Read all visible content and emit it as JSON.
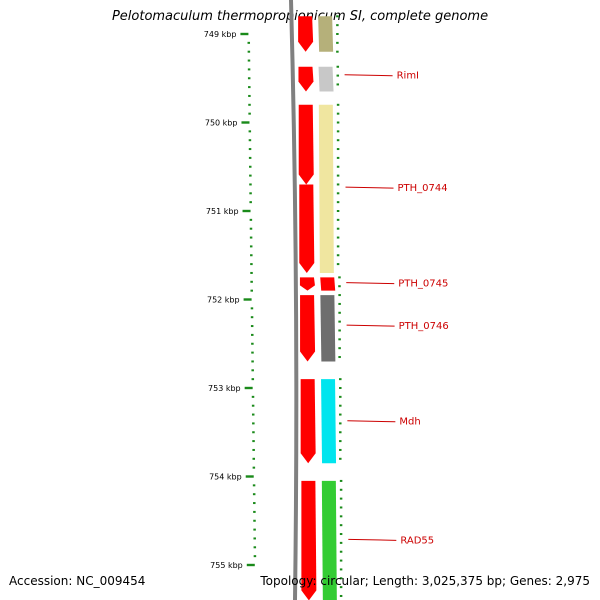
{
  "title": "Pelotomaculum thermopropionicum SI, complete genome",
  "accession": "Accession: NC_009454",
  "topology": "Topology: circular; Length: 3,025,375 bp; Genes: 2,975",
  "colors": {
    "tick": "#1a8a1a",
    "backbone": "#808080",
    "forward": "#ff0000",
    "label": "#cc0000"
  },
  "ticks": [
    {
      "label": "749 kbp"
    },
    {
      "label": "750 kbp"
    },
    {
      "label": "751 kbp"
    },
    {
      "label": "752 kbp"
    },
    {
      "label": "753 kbp"
    },
    {
      "label": "754 kbp"
    },
    {
      "label": "755 kbp"
    }
  ],
  "genes": [
    {
      "name": "",
      "color": "#b5b07a"
    },
    {
      "name": "RimI",
      "color": "#c8c8c8"
    },
    {
      "name": "PTH_0744",
      "color": "#f0e6a0"
    },
    {
      "name": "PTH_0745",
      "color": "#ff0000"
    },
    {
      "name": "PTH_0746",
      "color": "#6e6e6e"
    },
    {
      "name": "Mdh",
      "color": "#00e5ee"
    },
    {
      "name": "RAD55",
      "color": "#33cc33"
    }
  ]
}
